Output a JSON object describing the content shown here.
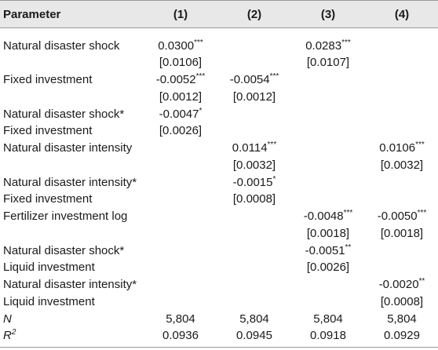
{
  "header": {
    "parameter": "Parameter",
    "col1": "(1)",
    "col2": "(2)",
    "col3": "(3)",
    "col4": "(4)"
  },
  "rows": {
    "r1": {
      "label": "Natural disaster shock",
      "c1": "0.0300",
      "c1_stars": "***",
      "c1_se": "[0.0106]",
      "c3": "0.0283",
      "c3_stars": "***",
      "c3_se": "[0.0107]"
    },
    "r2": {
      "label": "Fixed investment",
      "c1": "-0.0052",
      "c1_stars": "***",
      "c1_se": "[0.0012]",
      "c2": "-0.0054",
      "c2_stars": "***",
      "c2_se": "[0.0012]"
    },
    "r3": {
      "label1": "Natural disaster shock*",
      "label2": "Fixed investment",
      "c1": "-0.0047",
      "c1_stars": "*",
      "c1_se": "[0.0026]"
    },
    "r4": {
      "label": "Natural disaster intensity",
      "c2": "0.0114",
      "c2_stars": "***",
      "c2_se": "[0.0032]",
      "c4": "0.0106",
      "c4_stars": "***",
      "c4_se": "[0.0032]"
    },
    "r5": {
      "label1": "Natural disaster intensity*",
      "label2": "Fixed investment",
      "c2": "-0.0015",
      "c2_stars": "*",
      "c2_se": "[0.0008]"
    },
    "r6": {
      "label": "Fertilizer investment log",
      "c3": "-0.0048",
      "c3_stars": "***",
      "c3_se": "[0.0018]",
      "c4": "-0.0050",
      "c4_stars": "***",
      "c4_se": "[0.0018]"
    },
    "r7": {
      "label1": "Natural disaster shock*",
      "label2": "Liquid investment",
      "c3": "-0.0051",
      "c3_stars": "**",
      "c3_se": "[0.0026]"
    },
    "r8": {
      "label1": "Natural disaster intensity*",
      "label2": "Liquid investment",
      "c4": "-0.0020",
      "c4_stars": "**",
      "c4_se": "[0.0008]"
    },
    "n": {
      "label": "N",
      "c1": "5,804",
      "c2": "5,804",
      "c3": "5,804",
      "c4": "5,804"
    },
    "r2stat": {
      "label_base": "R",
      "label_sup": "2",
      "c1": "0.0936",
      "c2": "0.0945",
      "c3": "0.0918",
      "c4": "0.0929"
    }
  }
}
